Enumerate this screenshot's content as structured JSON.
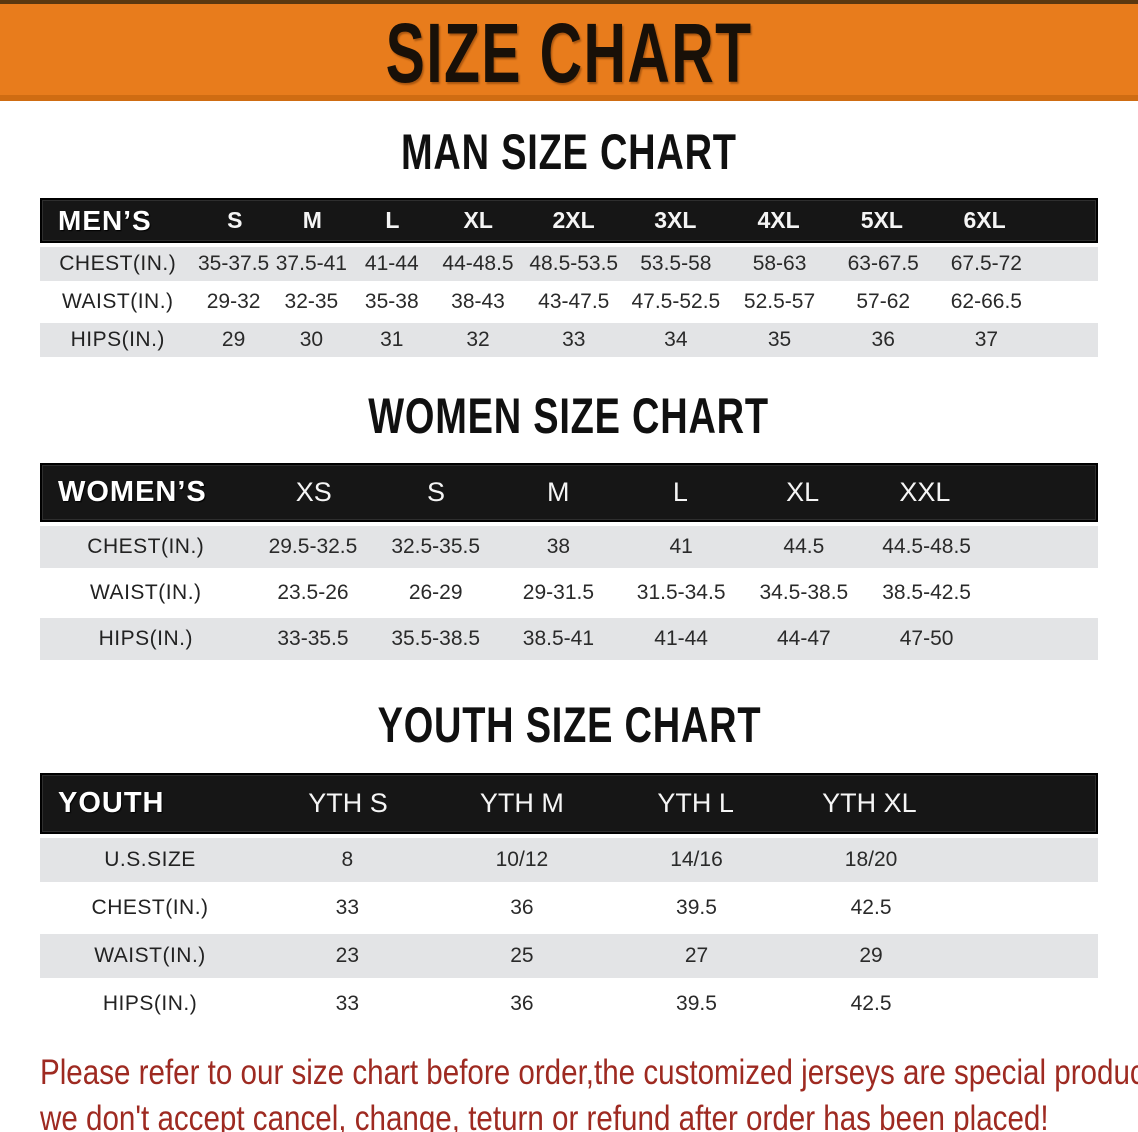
{
  "banner": {
    "title": "SIZE CHART"
  },
  "colors": {
    "banner_orange": "#e87c1c",
    "header_bar_black": "#161616",
    "row_alt_gray": "#e3e4e6",
    "note_red": "#9e2a21"
  },
  "men": {
    "heading": "MAN SIZE CHART",
    "header": {
      "label": "MEN’S",
      "sizes": [
        "S",
        "M",
        "L",
        "XL",
        "2XL",
        "3XL",
        "4XL",
        "5XL",
        "6XL"
      ]
    },
    "rows": [
      {
        "label": "CHEST(IN.)",
        "values": [
          "35-37.5",
          "37.5-41",
          "41-44",
          "44-48.5",
          "48.5-53.5",
          "53.5-58",
          "58-63",
          "63-67.5",
          "67.5-72"
        ]
      },
      {
        "label": "WAIST(IN.)",
        "values": [
          "29-32",
          "32-35",
          "35-38",
          "38-43",
          "43-47.5",
          "47.5-52.5",
          "52.5-57",
          "57-62",
          "62-66.5"
        ]
      },
      {
        "label": "HIPS(IN.)",
        "values": [
          "29",
          "30",
          "31",
          "32",
          "33",
          "34",
          "35",
          "36",
          "37"
        ]
      }
    ]
  },
  "women": {
    "heading": "WOMEN SIZE CHART",
    "header": {
      "label": "WOMEN’S",
      "sizes": [
        "XS",
        "S",
        "M",
        "L",
        "XL",
        "XXL"
      ]
    },
    "rows": [
      {
        "label": "CHEST(IN.)",
        "values": [
          "29.5-32.5",
          "32.5-35.5",
          "38",
          "41",
          "44.5",
          "44.5-48.5"
        ]
      },
      {
        "label": "WAIST(IN.)",
        "values": [
          "23.5-26",
          "26-29",
          "29-31.5",
          "31.5-34.5",
          "34.5-38.5",
          "38.5-42.5"
        ]
      },
      {
        "label": "HIPS(IN.)",
        "values": [
          "33-35.5",
          "35.5-38.5",
          "38.5-41",
          "41-44",
          "44-47",
          "47-50"
        ]
      }
    ]
  },
  "youth": {
    "heading": "YOUTH SIZE CHART",
    "header": {
      "label": "YOUTH",
      "sizes": [
        "YTH S",
        "YTH M",
        "YTH L",
        "YTH XL"
      ]
    },
    "rows": [
      {
        "label": "U.S.SIZE",
        "values": [
          "8",
          "10/12",
          "14/16",
          "18/20"
        ]
      },
      {
        "label": "CHEST(IN.)",
        "values": [
          "33",
          "36",
          "39.5",
          "42.5"
        ]
      },
      {
        "label": "WAIST(IN.)",
        "values": [
          "23",
          "25",
          "27",
          "29"
        ]
      },
      {
        "label": "HIPS(IN.)",
        "values": [
          "33",
          "36",
          "39.5",
          "42.5"
        ]
      }
    ]
  },
  "footer": {
    "line1": "Please refer to our size chart before order,the customized jerseys are special products,",
    "line2": "we don't accept cancel, change, teturn or refund after order has been placed!"
  }
}
